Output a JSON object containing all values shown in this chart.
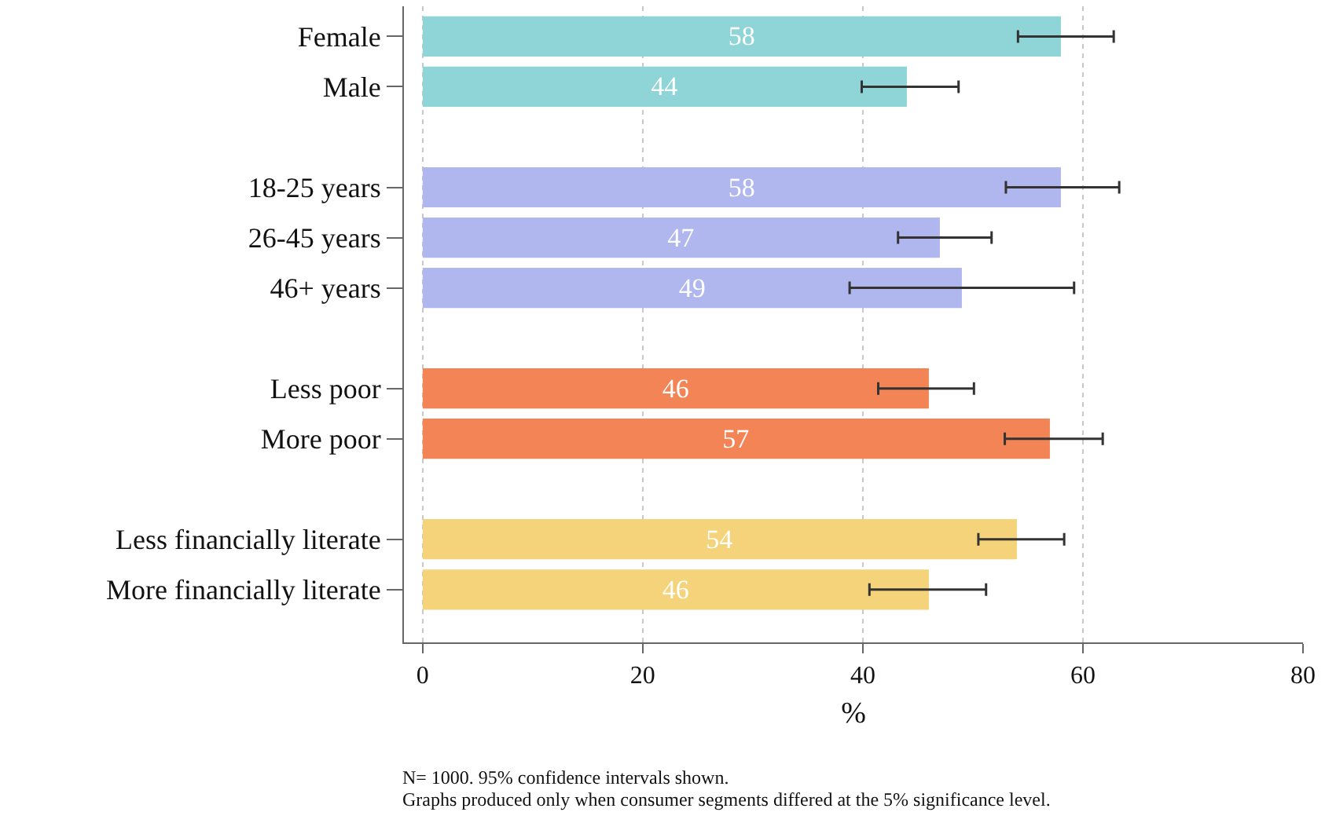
{
  "chart_data": {
    "type": "bar",
    "orientation": "horizontal",
    "categories": [
      "Female",
      "Male",
      null,
      "18-25 years",
      "26-45 years",
      "46+ years",
      null,
      "Less poor",
      "More poor",
      null,
      "Less financially literate",
      "More financially literate"
    ],
    "values": [
      58,
      44,
      null,
      58,
      47,
      49,
      null,
      46,
      57,
      null,
      54,
      46
    ],
    "colors": [
      "#8fd5d8",
      "#8fd5d8",
      null,
      "#b0b7ee",
      "#b0b7ee",
      "#b0b7ee",
      null,
      "#f38455",
      "#f38455",
      null,
      "#f5d37a",
      "#f5d37a"
    ],
    "errors": [
      [
        54.1,
        62.8
      ],
      [
        39.9,
        48.7
      ],
      null,
      [
        53.0,
        63.3
      ],
      [
        43.2,
        51.7
      ],
      [
        38.8,
        59.2
      ],
      null,
      [
        41.4,
        50.1
      ],
      [
        52.9,
        61.8
      ],
      null,
      [
        50.5,
        58.3
      ],
      [
        40.6,
        51.2
      ]
    ],
    "data_labels": true,
    "xlabel": "%",
    "xlim": [
      -1.7,
      80
    ],
    "xticks": [
      0,
      20,
      40,
      60,
      80
    ],
    "grid": "x",
    "annotations": [
      "N= 1000. 95% confidence intervals shown.",
      "Graphs produced only when consumer segments differed at the 5% significance level."
    ]
  }
}
